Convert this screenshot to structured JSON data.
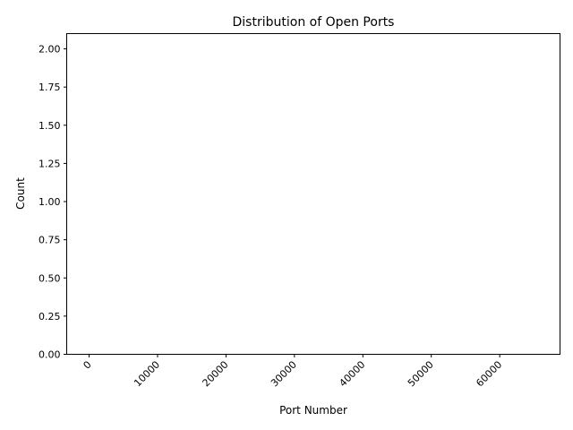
{
  "chart_data": {
    "type": "bar",
    "title": "Distribution of Open Ports",
    "xlabel": "Port Number",
    "ylabel": "Count",
    "xlim": [
      -3277,
      68811
    ],
    "ylim": [
      0,
      2.1
    ],
    "x_ticks": [
      0,
      10000,
      20000,
      30000,
      40000,
      50000,
      60000
    ],
    "x_tick_labels": [
      "0",
      "10000",
      "20000",
      "30000",
      "40000",
      "50000",
      "60000"
    ],
    "y_ticks": [
      0,
      0.25,
      0.5,
      0.75,
      1.0,
      1.25,
      1.5,
      1.75,
      2.0
    ],
    "y_tick_labels": [
      "0.00",
      "0.25",
      "0.50",
      "0.75",
      "1.00",
      "1.25",
      "1.50",
      "1.75",
      "2.00"
    ],
    "grid": false,
    "legend": "none",
    "x_tick_rotation_deg": 45,
    "bars": [],
    "colors": {
      "axis": "#000000",
      "background": "#ffffff"
    }
  }
}
